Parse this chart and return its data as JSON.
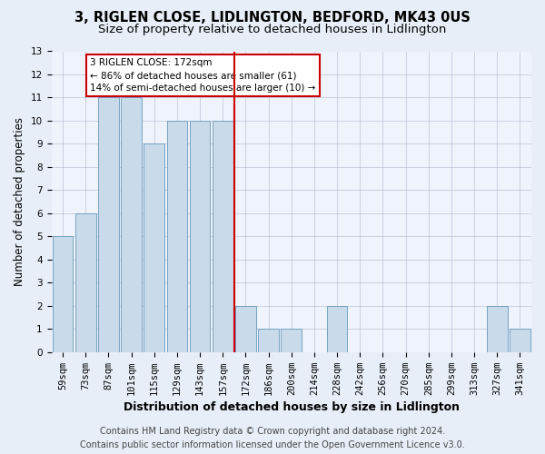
{
  "title": "3, RIGLEN CLOSE, LIDLINGTON, BEDFORD, MK43 0US",
  "subtitle": "Size of property relative to detached houses in Lidlington",
  "xlabel": "Distribution of detached houses by size in Lidlington",
  "ylabel": "Number of detached properties",
  "categories": [
    "59sqm",
    "73sqm",
    "87sqm",
    "101sqm",
    "115sqm",
    "129sqm",
    "143sqm",
    "157sqm",
    "172sqm",
    "186sqm",
    "200sqm",
    "214sqm",
    "228sqm",
    "242sqm",
    "256sqm",
    "270sqm",
    "285sqm",
    "299sqm",
    "313sqm",
    "327sqm",
    "341sqm"
  ],
  "values": [
    5,
    6,
    11,
    11,
    9,
    10,
    10,
    10,
    2,
    1,
    1,
    0,
    2,
    0,
    0,
    0,
    0,
    0,
    0,
    2,
    1
  ],
  "bar_color": "#c9daea",
  "bar_edge_color": "#6699bb",
  "highlight_line_index": 8,
  "highlight_box_text": "3 RIGLEN CLOSE: 172sqm\n← 86% of detached houses are smaller (61)\n14% of semi-detached houses are larger (10) →",
  "highlight_color": "#cc0000",
  "ylim": [
    0,
    13
  ],
  "yticks": [
    0,
    1,
    2,
    3,
    4,
    5,
    6,
    7,
    8,
    9,
    10,
    11,
    12,
    13
  ],
  "footer_line1": "Contains HM Land Registry data © Crown copyright and database right 2024.",
  "footer_line2": "Contains public sector information licensed under the Open Government Licence v3.0.",
  "bg_color": "#e8eef8",
  "plot_bg_color": "#eef3fc",
  "title_fontsize": 10.5,
  "subtitle_fontsize": 9.5,
  "ylabel_fontsize": 8.5,
  "xlabel_fontsize": 9,
  "tick_fontsize": 7.5,
  "footer_fontsize": 7,
  "annot_fontsize": 7.5
}
